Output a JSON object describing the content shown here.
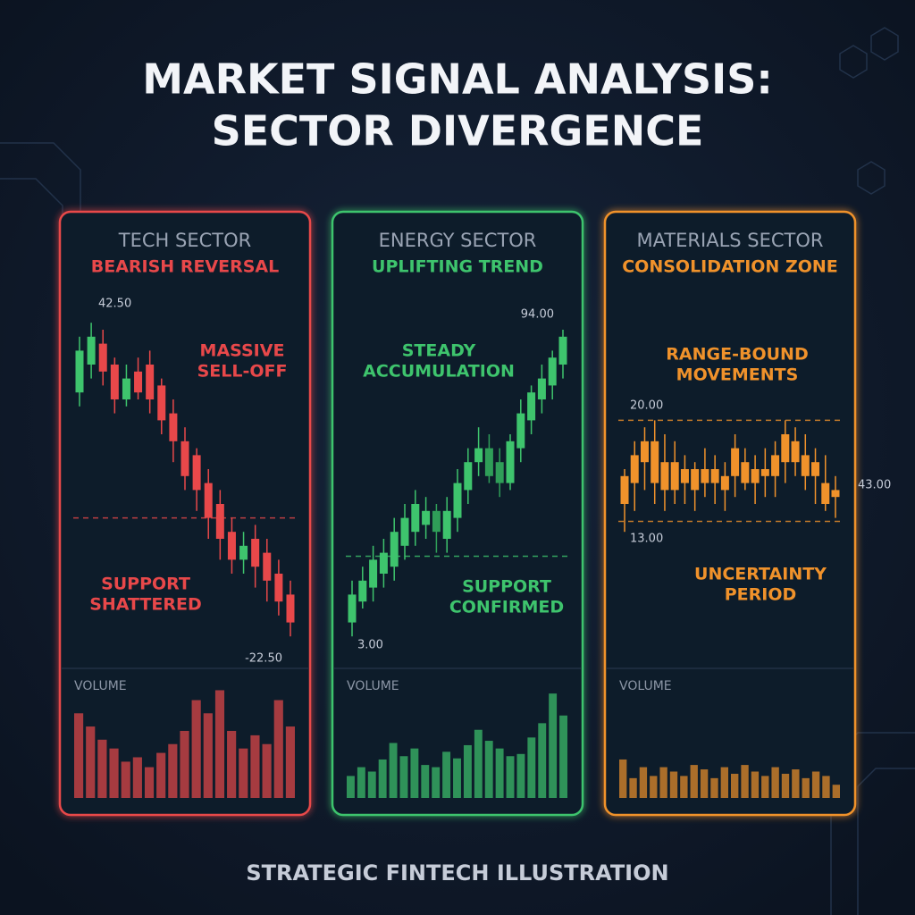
{
  "title_lines": [
    "MARKET SIGNAL ANALYSIS:",
    "SECTOR DIVERGENCE"
  ],
  "footer": "STRATEGIC FINTECH ILLUSTRATION",
  "chart_data": [
    {
      "type": "candlestick",
      "title": "TECH SECTOR",
      "subtitle": "BEARISH REVERSAL",
      "up_color": "#3ec46d",
      "down_color": "#e8484a",
      "color": "#e8484a",
      "ylim": [
        0,
        100
      ],
      "levels": [
        36
      ],
      "open": [
        72,
        80,
        86,
        80,
        70,
        78,
        80,
        74,
        66,
        58,
        54,
        46,
        40,
        32,
        24,
        30,
        26,
        20,
        14
      ],
      "high": [
        88,
        92,
        90,
        82,
        80,
        82,
        84,
        76,
        70,
        62,
        56,
        50,
        44,
        36,
        32,
        34,
        30,
        24,
        18
      ],
      "low": [
        68,
        76,
        74,
        66,
        68,
        70,
        66,
        60,
        52,
        44,
        38,
        30,
        24,
        20,
        20,
        16,
        12,
        8,
        2
      ],
      "close": [
        84,
        88,
        78,
        70,
        76,
        72,
        70,
        64,
        58,
        48,
        44,
        36,
        30,
        24,
        28,
        22,
        18,
        12,
        6
      ],
      "price_labels": [
        "42.50",
        "-22.50"
      ],
      "annotations": [
        {
          "lines": [
            "MASSIVE",
            "SELL-OFF"
          ]
        },
        {
          "lines": [
            "SUPPORT",
            "SHATTERED"
          ]
        }
      ],
      "volume_label": "VOLUME",
      "volume_ylim": [
        0,
        100
      ],
      "volume": [
        77,
        65,
        53,
        45,
        33,
        37,
        28,
        41,
        49,
        61,
        89,
        77,
        98,
        61,
        45,
        57,
        49,
        89,
        65
      ]
    },
    {
      "type": "candlestick",
      "title": "ENERGY SECTOR",
      "subtitle": "UPLIFTING TREND",
      "up_color": "#3ec46d",
      "down_color": "#2f9e58",
      "color": "#3ec46d",
      "ylim": [
        0,
        100
      ],
      "levels": [
        25
      ],
      "open": [
        6,
        12,
        16,
        20,
        22,
        28,
        32,
        34,
        38,
        30,
        36,
        44,
        52,
        56,
        52,
        46,
        56,
        64,
        70,
        74,
        80
      ],
      "high": [
        18,
        22,
        28,
        30,
        36,
        40,
        44,
        42,
        40,
        42,
        50,
        56,
        62,
        60,
        56,
        60,
        70,
        74,
        80,
        84,
        90
      ],
      "low": [
        2,
        10,
        12,
        16,
        18,
        24,
        28,
        30,
        26,
        26,
        32,
        40,
        48,
        46,
        42,
        44,
        52,
        60,
        66,
        70,
        76
      ],
      "close": [
        14,
        18,
        24,
        26,
        32,
        36,
        40,
        38,
        32,
        38,
        46,
        52,
        56,
        48,
        46,
        58,
        66,
        72,
        76,
        82,
        88
      ],
      "price_labels": [
        "94.00",
        "3.00"
      ],
      "annotations": [
        {
          "lines": [
            "STEADY",
            "ACCUMULATION"
          ]
        },
        {
          "lines": [
            "SUPPORT",
            "CONFIRMED"
          ]
        }
      ],
      "volume_label": "VOLUME",
      "volume_ylim": [
        0,
        100
      ],
      "volume": [
        20,
        28,
        24,
        35,
        50,
        38,
        45,
        30,
        28,
        42,
        36,
        48,
        62,
        52,
        45,
        38,
        40,
        55,
        68,
        95,
        75
      ]
    },
    {
      "type": "candlestick",
      "title": "MATERIALS SECTOR",
      "subtitle": "CONSOLIDATION ZONE",
      "up_color": "#f0922b",
      "down_color": "#f0922b",
      "color": "#f0922b",
      "ylim": [
        0,
        100
      ],
      "levels": [
        64,
        35
      ],
      "open": [
        40,
        46,
        52,
        58,
        44,
        52,
        46,
        44,
        50,
        46,
        44,
        48,
        52,
        46,
        50,
        48,
        52,
        58,
        54,
        48,
        46,
        42
      ],
      "high": [
        50,
        58,
        62,
        64,
        60,
        58,
        54,
        52,
        56,
        54,
        52,
        60,
        56,
        54,
        56,
        58,
        64,
        62,
        60,
        56,
        54,
        48
      ],
      "low": [
        32,
        38,
        44,
        40,
        38,
        40,
        40,
        38,
        42,
        40,
        38,
        42,
        44,
        40,
        42,
        42,
        46,
        48,
        44,
        40,
        38,
        36
      ],
      "close": [
        48,
        54,
        58,
        46,
        52,
        44,
        50,
        50,
        46,
        50,
        48,
        56,
        46,
        50,
        48,
        54,
        60,
        52,
        48,
        52,
        40,
        44
      ],
      "price_labels": [
        "20.00",
        "13.00",
        "43.00"
      ],
      "annotations": [
        {
          "lines": [
            "RANGE-BOUND",
            "MOVEMENTS"
          ]
        },
        {
          "lines": [
            "UNCERTAINTY",
            "PERIOD"
          ]
        }
      ],
      "volume_label": "VOLUME",
      "volume_ylim": [
        0,
        100
      ],
      "volume": [
        35,
        18,
        28,
        20,
        28,
        24,
        20,
        30,
        26,
        18,
        28,
        22,
        30,
        24,
        20,
        28,
        22,
        26,
        18,
        24,
        20,
        12
      ]
    }
  ]
}
